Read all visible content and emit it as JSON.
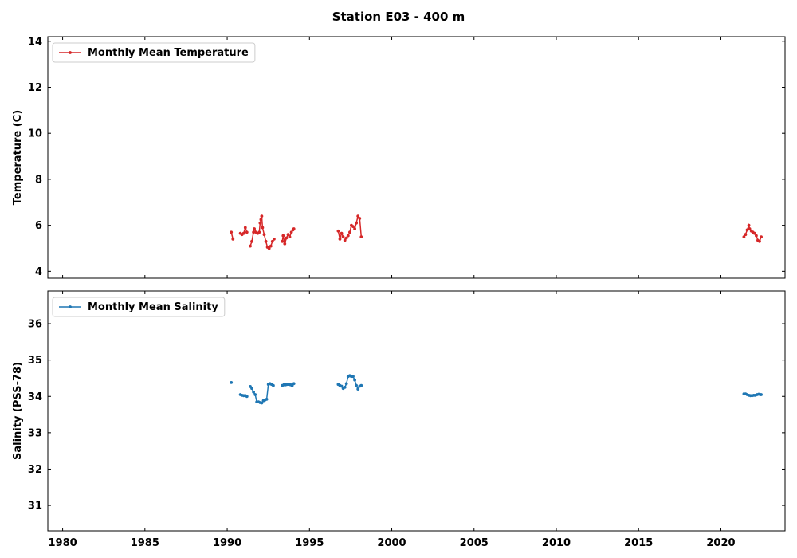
{
  "figure": {
    "title": "Station E03 - 400 m"
  },
  "chart_data": [
    {
      "type": "line",
      "panel": "top",
      "ylabel": "Temperature (C)",
      "xlabel": "",
      "xlim": [
        1979.1,
        2023.9
      ],
      "ylim": [
        3.7,
        14.2
      ],
      "xticks": [
        1980,
        1985,
        1990,
        1995,
        2000,
        2005,
        2010,
        2015,
        2020
      ],
      "yticks": [
        4,
        6,
        8,
        10,
        12,
        14
      ],
      "show_xtick_labels": false,
      "legend_position": "top-left",
      "grid": false,
      "series": [
        {
          "name": "Monthly Mean Temperature",
          "color": "#d62728",
          "segments": [
            [
              [
                1990.25,
                5.7
              ],
              [
                1990.35,
                5.4
              ]
            ],
            [
              [
                1990.8,
                5.65
              ],
              [
                1990.9,
                5.6
              ],
              [
                1991.0,
                5.65
              ],
              [
                1991.1,
                5.9
              ],
              [
                1991.2,
                5.7
              ]
            ],
            [
              [
                1991.4,
                5.1
              ],
              [
                1991.5,
                5.3
              ],
              [
                1991.6,
                5.7
              ],
              [
                1991.65,
                5.85
              ],
              [
                1991.75,
                5.7
              ],
              [
                1991.85,
                5.65
              ],
              [
                1991.95,
                5.7
              ],
              [
                1992.0,
                6.1
              ],
              [
                1992.05,
                6.25
              ],
              [
                1992.1,
                6.4
              ],
              [
                1992.15,
                5.9
              ],
              [
                1992.25,
                5.6
              ],
              [
                1992.35,
                5.3
              ],
              [
                1992.45,
                5.05
              ],
              [
                1992.55,
                5.0
              ],
              [
                1992.65,
                5.1
              ],
              [
                1992.75,
                5.3
              ],
              [
                1992.85,
                5.4
              ]
            ],
            [
              [
                1993.35,
                5.3
              ],
              [
                1993.4,
                5.55
              ],
              [
                1993.5,
                5.2
              ],
              [
                1993.6,
                5.45
              ],
              [
                1993.7,
                5.6
              ],
              [
                1993.8,
                5.5
              ],
              [
                1993.9,
                5.7
              ],
              [
                1994.0,
                5.8
              ],
              [
                1994.05,
                5.85
              ]
            ],
            [
              [
                1996.75,
                5.75
              ],
              [
                1996.85,
                5.4
              ],
              [
                1996.95,
                5.65
              ],
              [
                1997.05,
                5.5
              ],
              [
                1997.15,
                5.35
              ],
              [
                1997.25,
                5.45
              ],
              [
                1997.35,
                5.55
              ],
              [
                1997.45,
                5.7
              ],
              [
                1997.55,
                6.0
              ],
              [
                1997.65,
                5.95
              ],
              [
                1997.75,
                5.85
              ],
              [
                1997.85,
                6.1
              ],
              [
                1997.95,
                6.4
              ],
              [
                1998.05,
                6.3
              ],
              [
                1998.15,
                5.5
              ]
            ],
            [
              [
                2021.4,
                5.5
              ],
              [
                2021.5,
                5.6
              ],
              [
                2021.6,
                5.8
              ],
              [
                2021.7,
                6.0
              ],
              [
                2021.75,
                5.85
              ],
              [
                2021.85,
                5.75
              ],
              [
                2021.95,
                5.7
              ],
              [
                2022.05,
                5.65
              ],
              [
                2022.15,
                5.55
              ],
              [
                2022.25,
                5.35
              ],
              [
                2022.35,
                5.3
              ],
              [
                2022.45,
                5.5
              ]
            ]
          ]
        }
      ]
    },
    {
      "type": "line",
      "panel": "bottom",
      "ylabel": "Salinity (PSS-78)",
      "xlabel": "",
      "xlim": [
        1979.1,
        2023.9
      ],
      "ylim": [
        30.3,
        36.9
      ],
      "xticks": [
        1980,
        1985,
        1990,
        1995,
        2000,
        2005,
        2010,
        2015,
        2020
      ],
      "yticks": [
        31,
        32,
        33,
        34,
        35,
        36
      ],
      "show_xtick_labels": true,
      "legend_position": "top-left",
      "grid": false,
      "series": [
        {
          "name": "Monthly Mean Salinity",
          "color": "#1f77b4",
          "segments": [
            [
              [
                1990.25,
                34.38
              ]
            ],
            [
              [
                1990.8,
                34.05
              ],
              [
                1990.9,
                34.03
              ],
              [
                1991.0,
                34.02
              ],
              [
                1991.1,
                34.02
              ],
              [
                1991.2,
                34.0
              ]
            ],
            [
              [
                1991.4,
                34.27
              ],
              [
                1991.5,
                34.22
              ],
              [
                1991.6,
                34.12
              ],
              [
                1991.7,
                34.05
              ],
              [
                1991.8,
                33.85
              ],
              [
                1991.9,
                33.85
              ],
              [
                1992.0,
                33.83
              ],
              [
                1992.1,
                33.82
              ],
              [
                1992.2,
                33.88
              ],
              [
                1992.3,
                33.9
              ],
              [
                1992.4,
                33.92
              ],
              [
                1992.5,
                34.33
              ],
              [
                1992.6,
                34.35
              ],
              [
                1992.7,
                34.33
              ],
              [
                1992.8,
                34.3
              ]
            ],
            [
              [
                1993.35,
                34.3
              ],
              [
                1993.45,
                34.32
              ],
              [
                1993.55,
                34.32
              ],
              [
                1993.65,
                34.33
              ],
              [
                1993.75,
                34.33
              ],
              [
                1993.85,
                34.32
              ],
              [
                1993.95,
                34.3
              ],
              [
                1994.05,
                34.35
              ]
            ],
            [
              [
                1996.75,
                34.33
              ],
              [
                1996.85,
                34.3
              ],
              [
                1996.95,
                34.28
              ],
              [
                1997.05,
                34.22
              ],
              [
                1997.15,
                34.25
              ],
              [
                1997.25,
                34.35
              ],
              [
                1997.35,
                34.55
              ],
              [
                1997.45,
                34.57
              ],
              [
                1997.55,
                34.55
              ],
              [
                1997.65,
                34.55
              ],
              [
                1997.75,
                34.45
              ],
              [
                1997.85,
                34.3
              ],
              [
                1997.95,
                34.2
              ],
              [
                1998.05,
                34.28
              ],
              [
                1998.15,
                34.3
              ]
            ],
            [
              [
                2021.4,
                34.07
              ],
              [
                2021.5,
                34.07
              ],
              [
                2021.6,
                34.05
              ],
              [
                2021.7,
                34.03
              ],
              [
                2021.8,
                34.02
              ],
              [
                2021.9,
                34.02
              ],
              [
                2022.0,
                34.03
              ],
              [
                2022.1,
                34.03
              ],
              [
                2022.2,
                34.05
              ],
              [
                2022.3,
                34.06
              ],
              [
                2022.4,
                34.05
              ],
              [
                2022.45,
                34.05
              ]
            ]
          ]
        }
      ]
    }
  ]
}
